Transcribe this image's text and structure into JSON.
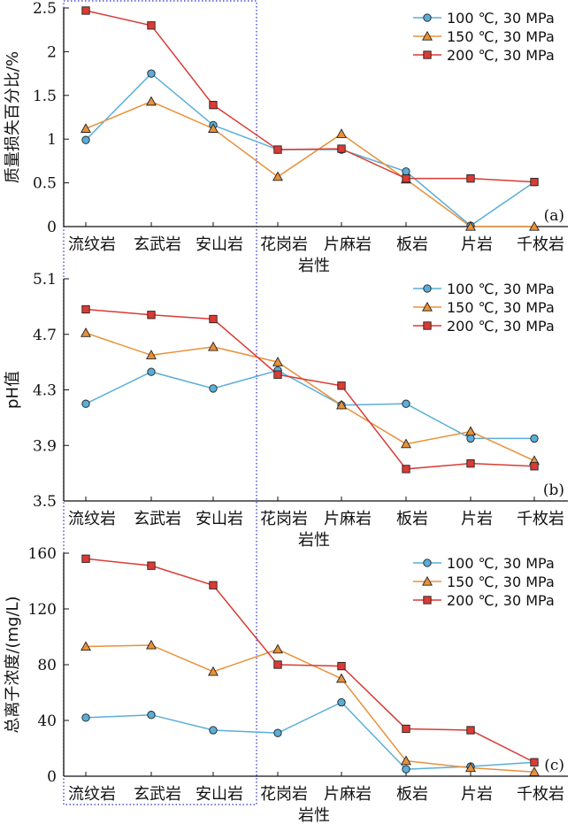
{
  "chart_data": [
    {
      "type": "line",
      "panel_label": "(a)",
      "categories": [
        "流纹岩",
        "玄武岩",
        "安山岩",
        "花岗岩",
        "片麻岩",
        "板岩",
        "片岩",
        "千枚岩"
      ],
      "xlabel": "岩性",
      "ylabel": "质量损失百分比/%",
      "ylim": [
        0,
        2.5
      ],
      "yticks": [
        "0",
        "0.5",
        "1",
        "1.5",
        "2",
        "2.5"
      ],
      "legend_position": "top-right",
      "series": [
        {
          "name": "100 ℃, 30 MPa",
          "color": "#5aaed9",
          "marker": "circle",
          "values": [
            0.99,
            1.75,
            1.16,
            0.88,
            0.88,
            0.63,
            0.01,
            0.51
          ]
        },
        {
          "name": "150 ℃, 30 MPa",
          "color": "#e8913a",
          "marker": "triangle",
          "values": [
            1.12,
            1.43,
            1.12,
            0.57,
            1.06,
            0.54,
            0.0,
            0.0
          ]
        },
        {
          "name": "200 ℃, 30 MPa",
          "color": "#d93b35",
          "marker": "square",
          "values": [
            2.47,
            2.3,
            1.39,
            0.88,
            0.89,
            0.55,
            0.55,
            0.51
          ]
        }
      ]
    },
    {
      "type": "line",
      "panel_label": "(b)",
      "categories": [
        "流纹岩",
        "玄武岩",
        "安山岩",
        "花岗岩",
        "片麻岩",
        "板岩",
        "片岩",
        "千枚岩"
      ],
      "xlabel": "岩性",
      "ylabel": "pH值",
      "ylim": [
        3.5,
        5.1
      ],
      "yticks": [
        "3.5",
        "3.9",
        "4.3",
        "4.7",
        "5.1"
      ],
      "legend_position": "top-right",
      "series": [
        {
          "name": "100 ℃, 30 MPa",
          "color": "#5aaed9",
          "marker": "circle",
          "values": [
            4.2,
            4.43,
            4.31,
            4.44,
            4.19,
            4.2,
            3.95,
            3.95
          ]
        },
        {
          "name": "150 ℃, 30 MPa",
          "color": "#e8913a",
          "marker": "triangle",
          "values": [
            4.71,
            4.55,
            4.61,
            4.5,
            4.19,
            3.91,
            4.0,
            3.79
          ]
        },
        {
          "name": "200 ℃, 30 MPa",
          "color": "#d93b35",
          "marker": "square",
          "values": [
            4.88,
            4.84,
            4.81,
            4.41,
            4.33,
            3.73,
            3.77,
            3.75
          ]
        }
      ]
    },
    {
      "type": "line",
      "panel_label": "(c)",
      "categories": [
        "流纹岩",
        "玄武岩",
        "安山岩",
        "花岗岩",
        "片麻岩",
        "板岩",
        "片岩",
        "千枚岩"
      ],
      "xlabel": "岩性",
      "ylabel": "总离子浓度/(mg/L)",
      "ylim": [
        0,
        160
      ],
      "yticks": [
        "0",
        "40",
        "80",
        "120",
        "160"
      ],
      "legend_position": "top-right",
      "series": [
        {
          "name": "100 ℃, 30 MPa",
          "color": "#5aaed9",
          "marker": "circle",
          "values": [
            42,
            44,
            33,
            31,
            53,
            5,
            7,
            10
          ]
        },
        {
          "name": "150 ℃, 30 MPa",
          "color": "#e8913a",
          "marker": "triangle",
          "values": [
            93,
            94,
            75,
            91,
            70,
            11,
            6,
            3
          ]
        },
        {
          "name": "200 ℃, 30 MPa",
          "color": "#d93b35",
          "marker": "square",
          "values": [
            156,
            151,
            137,
            80,
            79,
            34,
            33,
            10
          ]
        }
      ]
    }
  ]
}
